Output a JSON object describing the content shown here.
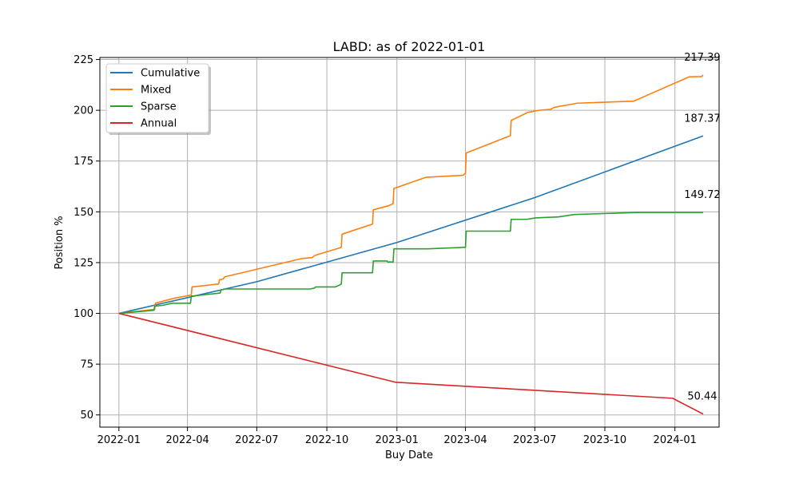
{
  "chart_data": {
    "type": "line",
    "title": "LABD: as of 2022-01-01",
    "xlabel": "Buy Date",
    "ylabel": "Position %",
    "xlim": [
      "2021-12-07",
      "2024-02-28"
    ],
    "ylim": [
      44,
      226
    ],
    "x_ticks": [
      "2022-01-01",
      "2022-04-01",
      "2022-07-01",
      "2022-10-01",
      "2023-01-01",
      "2023-04-01",
      "2023-07-01",
      "2023-10-01",
      "2024-01-01"
    ],
    "x_tick_labels": [
      "2022-01",
      "2022-04",
      "2022-07",
      "2022-10",
      "2023-01",
      "2023-04",
      "2023-07",
      "2023-10",
      "2024-01"
    ],
    "y_ticks": [
      50,
      75,
      100,
      125,
      150,
      175,
      200,
      225
    ],
    "y_tick_labels": [
      "50",
      "75",
      "100",
      "125",
      "150",
      "175",
      "200",
      "225"
    ],
    "grid": true,
    "legend_position": "top-left",
    "series": [
      {
        "name": "Cumulative",
        "color": "#1f77b4",
        "points": [
          [
            "2022-01-01",
            100.0
          ],
          [
            "2022-07-01",
            115.6
          ],
          [
            "2023-01-01",
            134.9
          ],
          [
            "2023-07-01",
            157.0
          ],
          [
            "2024-02-07",
            187.37
          ]
        ],
        "end_label": "187.37"
      },
      {
        "name": "Mixed",
        "color": "#ff7f0e",
        "points": [
          [
            "2022-01-01",
            100.0
          ],
          [
            "2022-02-17",
            102.0
          ],
          [
            "2022-02-18",
            105.0
          ],
          [
            "2022-03-15",
            107.5
          ],
          [
            "2022-04-06",
            109.0
          ],
          [
            "2022-04-07",
            113.0
          ],
          [
            "2022-05-12",
            114.5
          ],
          [
            "2022-05-13",
            116.5
          ],
          [
            "2022-05-18",
            117.0
          ],
          [
            "2022-05-20",
            118.0
          ],
          [
            "2022-08-29",
            127.0
          ],
          [
            "2022-09-12",
            127.5
          ],
          [
            "2022-09-15",
            128.5
          ],
          [
            "2022-10-20",
            132.5
          ],
          [
            "2022-10-21",
            139.0
          ],
          [
            "2022-11-30",
            144.0
          ],
          [
            "2022-12-01",
            151.0
          ],
          [
            "2022-12-21",
            153.0
          ],
          [
            "2022-12-27",
            154.0
          ],
          [
            "2022-12-28",
            161.5
          ],
          [
            "2023-02-08",
            167.0
          ],
          [
            "2023-03-29",
            168.0
          ],
          [
            "2023-04-01",
            169.0
          ],
          [
            "2023-04-02",
            179.0
          ],
          [
            "2023-05-30",
            187.5
          ],
          [
            "2023-05-31",
            195.0
          ],
          [
            "2023-06-22",
            199.0
          ],
          [
            "2023-07-07",
            200.0
          ],
          [
            "2023-07-22",
            200.5
          ],
          [
            "2023-07-27",
            201.5
          ],
          [
            "2023-08-26",
            203.5
          ],
          [
            "2023-11-08",
            204.5
          ],
          [
            "2024-01-20",
            216.5
          ],
          [
            "2024-02-05",
            216.6
          ],
          [
            "2024-02-07",
            217.39
          ]
        ],
        "end_label": "217.39"
      },
      {
        "name": "Sparse",
        "color": "#2ca02c",
        "points": [
          [
            "2022-01-01",
            100.0
          ],
          [
            "2022-02-16",
            101.5
          ],
          [
            "2022-02-17",
            103.5
          ],
          [
            "2022-02-28",
            104.0
          ],
          [
            "2022-03-12",
            105.0
          ],
          [
            "2022-04-05",
            105.0
          ],
          [
            "2022-04-06",
            108.5
          ],
          [
            "2022-05-14",
            110.0
          ],
          [
            "2022-05-15",
            111.5
          ],
          [
            "2022-05-20",
            112.0
          ],
          [
            "2022-09-09",
            112.0
          ],
          [
            "2022-09-15",
            112.5
          ],
          [
            "2022-09-16",
            113.0
          ],
          [
            "2022-10-12",
            113.0
          ],
          [
            "2022-10-18",
            114.0
          ],
          [
            "2022-10-20",
            114.5
          ],
          [
            "2022-10-21",
            120.0
          ],
          [
            "2022-11-30",
            120.0
          ],
          [
            "2022-12-01",
            125.8
          ],
          [
            "2022-12-19",
            125.8
          ],
          [
            "2022-12-20",
            125.3
          ],
          [
            "2022-12-27",
            125.3
          ],
          [
            "2022-12-28",
            131.8
          ],
          [
            "2023-02-10",
            131.8
          ],
          [
            "2023-03-31",
            132.5
          ],
          [
            "2023-04-01",
            132.5
          ],
          [
            "2023-04-02",
            140.5
          ],
          [
            "2023-05-30",
            140.5
          ],
          [
            "2023-05-31",
            146.3
          ],
          [
            "2023-06-20",
            146.3
          ],
          [
            "2023-07-02",
            147.0
          ],
          [
            "2023-08-01",
            147.5
          ],
          [
            "2023-08-22",
            148.7
          ],
          [
            "2023-11-15",
            149.7
          ],
          [
            "2024-02-07",
            149.72
          ]
        ],
        "end_label": "149.72"
      },
      {
        "name": "Annual",
        "color": "#d62728",
        "points": [
          [
            "2022-01-01",
            100.0
          ],
          [
            "2022-12-30",
            66.1
          ],
          [
            "2023-12-29",
            58.2
          ],
          [
            "2024-02-07",
            50.44
          ]
        ],
        "end_label": "50.44"
      }
    ]
  }
}
